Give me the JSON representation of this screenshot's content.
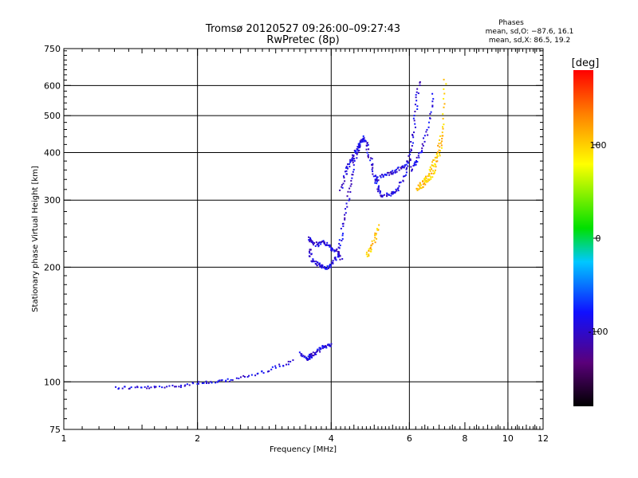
{
  "chart_data": {
    "type": "scatter",
    "title": "Tromsø 20120527 09:26:00–09:27:43",
    "subtitle": "RwPretec (8p)",
    "xlabel": "Frequency [MHz]",
    "ylabel": "Stationary phase Virtual Height [km]",
    "x_scale": "log",
    "y_scale": "log",
    "xlim": [
      1,
      12
    ],
    "ylim": [
      75,
      750
    ],
    "x_ticks": [
      1,
      2,
      4,
      6,
      8,
      10,
      12
    ],
    "y_ticks": [
      75,
      100,
      200,
      300,
      400,
      500,
      600,
      750
    ],
    "grid": true,
    "stats": {
      "heading": "Phases",
      "line1": "mean, sd,O: −87.6, 16.1",
      "line2": "mean, sd,X:  86.5, 19.2"
    },
    "colorbar": {
      "label": "[deg]",
      "range": [
        -180,
        180
      ],
      "ticks": [
        -100,
        0,
        100
      ],
      "colormap": [
        "#000000",
        "#5a007a",
        "#1010ff",
        "#00c8ff",
        "#00e000",
        "#ffff00",
        "#ff8000",
        "#ff0000"
      ]
    },
    "series": [
      {
        "mode": "O",
        "phase_deg": -90,
        "traces": [
          {
            "x": [
              1.3,
              1.45,
              1.6,
              1.8,
              2.0,
              2.2,
              2.4,
              2.7,
              3.0,
              3.3
            ],
            "y": [
              97,
              97,
              97,
              98,
              100,
              100,
              102,
              105,
              110,
              114
            ]
          },
          {
            "x": [
              3.4,
              3.5,
              3.55,
              3.6,
              3.7,
              3.8,
              3.9,
              4.0
            ],
            "y": [
              120,
              115,
              116,
              118,
              120,
              124,
              125,
              126
            ]
          },
          {
            "x": [
              3.55,
              3.6,
              3.7,
              3.8,
              3.9,
              4.0,
              4.1,
              4.2,
              4.3,
              4.4,
              4.5,
              4.6,
              4.7
            ],
            "y": [
              225,
              210,
              205,
              202,
              200,
              205,
              215,
              240,
              280,
              330,
              380,
              420,
              435
            ]
          },
          {
            "x": [
              3.55,
              3.6,
              3.7,
              3.8,
              3.9,
              4.0,
              4.1,
              4.2
            ],
            "y": [
              240,
              235,
              230,
              235,
              230,
              225,
              220,
              210
            ]
          },
          {
            "x": [
              4.2,
              4.3,
              4.4,
              4.5,
              4.6,
              4.7
            ],
            "y": [
              320,
              360,
              380,
              400,
              410,
              440
            ]
          },
          {
            "x": [
              4.7,
              4.8,
              4.9,
              5.0,
              5.1,
              5.2
            ],
            "y": [
              440,
              420,
              380,
              345,
              320,
              310
            ]
          },
          {
            "x": [
              5.2,
              5.4,
              5.6,
              5.8,
              6.0,
              6.1,
              6.2,
              6.3
            ],
            "y": [
              310,
              312,
              320,
              345,
              390,
              450,
              540,
              630
            ]
          },
          {
            "x": [
              5.0,
              5.2,
              5.4,
              5.6,
              5.8,
              6.0
            ],
            "y": [
              340,
              350,
              355,
              360,
              370,
              390
            ]
          },
          {
            "x": [
              6.0,
              6.2,
              6.4,
              6.6,
              6.8
            ],
            "y": [
              360,
              380,
              410,
              480,
              580
            ]
          }
        ]
      },
      {
        "mode": "X",
        "phase_deg": 100,
        "traces": [
          {
            "x": [
              6.2,
              6.4,
              6.6,
              6.8,
              7.0,
              7.1,
              7.2
            ],
            "y": [
              320,
              330,
              340,
              360,
              400,
              480,
              640
            ]
          },
          {
            "x": [
              6.3,
              6.5,
              6.7,
              6.9,
              7.1
            ],
            "y": [
              330,
              345,
              365,
              400,
              450
            ]
          },
          {
            "x": [
              4.8,
              4.9,
              5.0,
              5.1
            ],
            "y": [
              215,
              225,
              240,
              260
            ]
          }
        ]
      }
    ]
  }
}
